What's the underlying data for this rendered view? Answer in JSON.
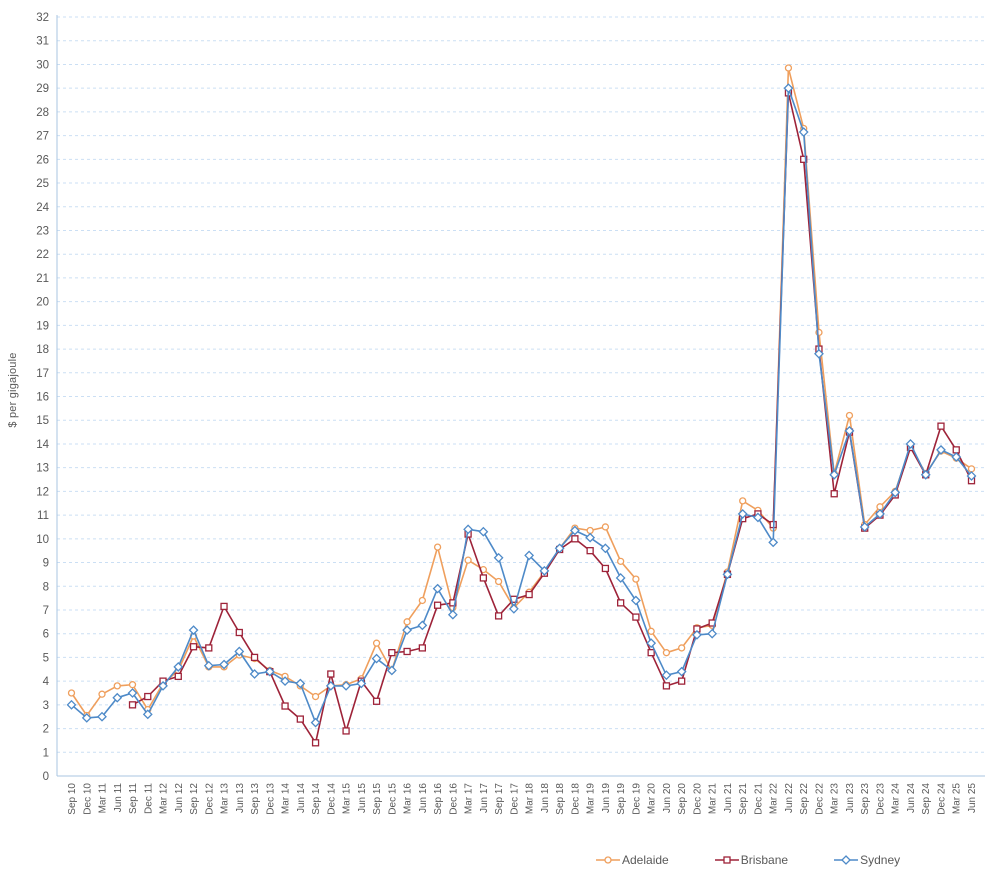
{
  "chart_data": {
    "type": "line",
    "title": "",
    "ylabel": "$ per gigajoule",
    "ylim": [
      0,
      32
    ],
    "ytick_step": 1,
    "grid": "horizontal-dashed",
    "legend_position": "bottom-center",
    "axis_color": "#A9C5E2",
    "grid_color": "#CBDFF4",
    "tick_color": "#595959",
    "categories": [
      "Sep 10",
      "Dec 10",
      "Mar 11",
      "Jun 11",
      "Sep 11",
      "Dec 11",
      "Mar 12",
      "Jun 12",
      "Sep 12",
      "Dec 12",
      "Mar 13",
      "Jun 13",
      "Sep 13",
      "Dec 13",
      "Mar 14",
      "Jun 14",
      "Sep 14",
      "Dec 14",
      "Mar 15",
      "Jun 15",
      "Sep 15",
      "Dec 15",
      "Mar 16",
      "Jun 16",
      "Sep 16",
      "Dec 16",
      "Mar 17",
      "Jun 17",
      "Sep 17",
      "Dec 17",
      "Mar 18",
      "Jun 18",
      "Sep 18",
      "Dec 18",
      "Mar 19",
      "Jun 19",
      "Sep 19",
      "Dec 19",
      "Mar 20",
      "Jun 20",
      "Sep 20",
      "Dec 20",
      "Mar 21",
      "Jun 21",
      "Sep 21",
      "Dec 21",
      "Mar 22",
      "Jun 22",
      "Sep 22",
      "Dec 22",
      "Mar 23",
      "Jun 23",
      "Sep 23",
      "Dec 23",
      "Mar 24",
      "Jun 24",
      "Sep 24",
      "Dec 24",
      "Mar 25",
      "Jun 25"
    ],
    "series": [
      {
        "name": "Adelaide",
        "color": "#EF9F5D",
        "marker": "circle",
        "values": [
          3.5,
          2.55,
          3.45,
          3.8,
          3.85,
          2.8,
          3.9,
          4.45,
          5.9,
          4.6,
          4.6,
          5.1,
          4.95,
          4.45,
          4.2,
          3.8,
          3.35,
          3.8,
          3.85,
          4.1,
          5.6,
          4.45,
          6.5,
          7.4,
          9.65,
          7.1,
          9.1,
          8.7,
          8.2,
          7.1,
          7.75,
          8.6,
          9.6,
          10.45,
          10.35,
          10.5,
          9.05,
          8.3,
          6.1,
          5.2,
          5.4,
          6.25,
          6.35,
          8.6,
          11.6,
          11.2,
          10.45,
          29.85,
          27.3,
          18.7,
          12.75,
          15.2,
          10.6,
          11.35,
          12.0,
          13.9,
          12.75,
          13.7,
          13.4,
          12.95
        ]
      },
      {
        "name": "Brisbane",
        "color": "#9E2339",
        "marker": "square",
        "values": [
          null,
          null,
          null,
          null,
          3.0,
          3.35,
          4.0,
          4.2,
          5.45,
          5.4,
          7.15,
          6.05,
          5.0,
          4.4,
          2.95,
          2.4,
          1.4,
          4.3,
          1.9,
          4.0,
          3.15,
          5.2,
          5.25,
          5.4,
          7.2,
          7.3,
          10.2,
          8.35,
          6.75,
          7.45,
          7.65,
          8.55,
          9.55,
          10.0,
          9.5,
          8.75,
          7.3,
          6.7,
          5.2,
          3.8,
          4.0,
          6.2,
          6.45,
          8.5,
          10.85,
          11.05,
          10.6,
          28.8,
          26.0,
          18.0,
          11.9,
          14.5,
          10.45,
          11.0,
          11.85,
          13.85,
          12.7,
          14.75,
          13.75,
          12.45
        ]
      },
      {
        "name": "Sydney",
        "color": "#4E8AC8",
        "marker": "diamond",
        "values": [
          3.0,
          2.45,
          2.5,
          3.3,
          3.5,
          2.6,
          3.8,
          4.6,
          6.15,
          4.65,
          4.7,
          5.25,
          4.3,
          4.4,
          4.0,
          3.9,
          2.25,
          3.8,
          3.8,
          3.9,
          4.95,
          4.45,
          6.15,
          6.35,
          7.9,
          6.8,
          10.4,
          10.3,
          9.2,
          7.05,
          9.3,
          8.65,
          9.6,
          10.35,
          10.05,
          9.6,
          8.35,
          7.4,
          5.6,
          4.25,
          4.4,
          5.95,
          6.0,
          8.5,
          11.05,
          10.9,
          9.85,
          29.0,
          27.15,
          17.8,
          12.7,
          14.55,
          10.5,
          11.05,
          11.95,
          14.0,
          12.7,
          13.75,
          13.45,
          12.65
        ]
      }
    ]
  }
}
